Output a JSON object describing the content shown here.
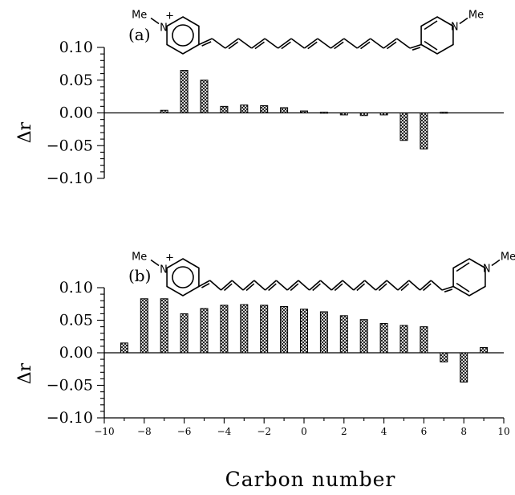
{
  "chart_data": [
    {
      "type": "bar",
      "panel_label": "(a)",
      "ylabel": "Δr",
      "ylim": [
        -0.1,
        0.1
      ],
      "yticks": [
        "0.10",
        "0.05",
        "0.00",
        "−0.05",
        "−0.10"
      ],
      "x": [
        -7,
        -6,
        -5,
        -4,
        -3,
        -2,
        -1,
        0,
        1,
        2,
        3,
        4,
        5,
        6,
        7
      ],
      "values": [
        0.004,
        0.065,
        0.05,
        0.01,
        0.012,
        0.011,
        0.008,
        0.003,
        0.001,
        -0.003,
        -0.004,
        -0.003,
        -0.042,
        -0.055,
        0.001
      ],
      "fill": "crosshatch",
      "structure": {
        "left_group": "Me",
        "left_charge": "+",
        "right_group": "Me",
        "left_atom": "N",
        "right_atom": "N"
      }
    },
    {
      "type": "bar",
      "panel_label": "(b)",
      "ylabel": "Δr",
      "xlabel": "Carbon number",
      "ylim": [
        -0.1,
        0.1
      ],
      "xlim": [
        -10,
        10
      ],
      "yticks": [
        "0.10",
        "0.05",
        "0.00",
        "−0.05",
        "−0.10"
      ],
      "xticks": [
        "−10",
        "−8",
        "−6",
        "−4",
        "−2",
        "0",
        "2",
        "4",
        "6",
        "8",
        "10"
      ],
      "x": [
        -9,
        -8,
        -7,
        -6,
        -5,
        -4,
        -3,
        -2,
        -1,
        0,
        1,
        2,
        3,
        4,
        5,
        6,
        7,
        8,
        9
      ],
      "values": [
        0.015,
        0.083,
        0.083,
        0.06,
        0.068,
        0.073,
        0.074,
        0.073,
        0.071,
        0.067,
        0.063,
        0.057,
        0.051,
        0.045,
        0.042,
        0.04,
        -0.014,
        -0.045,
        0.008
      ],
      "fill": "crosshatch",
      "structure": {
        "left_group": "Me",
        "left_charge": "+",
        "right_group": "Me",
        "left_atom": "N",
        "right_atom": "N"
      }
    }
  ]
}
